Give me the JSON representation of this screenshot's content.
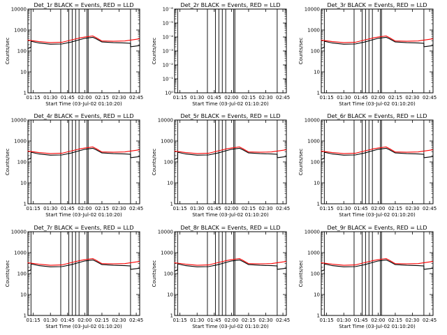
{
  "chart_data": [
    {
      "type": "line",
      "title": "Det_1r BLACK = Events, RED = LLD",
      "xlabel": "Start Time (03-Jul-02 01:10:20)",
      "ylabel": "Counts/sec",
      "xlim": [
        "01:10:20",
        "02:48:00"
      ],
      "ylim": [
        1,
        10000
      ],
      "yscale": "log",
      "xticks": [
        "01:15",
        "01:30",
        "01:45",
        "02:00",
        "02:15",
        "02:30",
        "02:45"
      ],
      "yticks": [
        "1",
        "10",
        "100",
        "1000",
        "10000"
      ],
      "verticals": [
        "01:13",
        "01:39",
        "01:46",
        "01:49",
        "01:52",
        "01:55",
        "02:02",
        "02:03",
        "02:40"
      ],
      "series": [
        {
          "name": "Events",
          "color": "#000000",
          "x": [
            "01:10",
            "01:13",
            "01:13",
            "01:20",
            "01:30",
            "01:40",
            "01:48",
            "01:55",
            "02:00",
            "02:07",
            "02:10",
            "02:15",
            "02:25",
            "02:35",
            "02:40",
            "02:40",
            "02:48"
          ],
          "y": [
            130,
            150,
            290,
            240,
            210,
            215,
            265,
            340,
            400,
            450,
            380,
            270,
            250,
            240,
            230,
            160,
            180
          ]
        },
        {
          "name": "LLD",
          "color": "#ff0000",
          "x": [
            "01:10",
            "01:20",
            "01:30",
            "01:40",
            "01:48",
            "01:55",
            "02:00",
            "02:07",
            "02:10",
            "02:15",
            "02:25",
            "02:35",
            "02:48"
          ],
          "y": [
            330,
            280,
            250,
            260,
            330,
            410,
            460,
            520,
            430,
            300,
            290,
            300,
            380
          ]
        }
      ]
    },
    {
      "type": "line",
      "title": "Det_2r BLACK = Events, RED = LLD",
      "xlabel": "Start Time (03-Jul-02 01:10:20)",
      "ylabel": "Counts/sec",
      "xlim": [
        "01:10:20",
        "02:48:00"
      ],
      "ylim": [
        1,
        1e-06
      ],
      "yscale": "log",
      "xticks": [
        "01:15",
        "01:30",
        "01:45",
        "02:00",
        "02:15",
        "02:30",
        "02:45"
      ],
      "yticks": [
        "10⁰",
        "10⁻¹",
        "10⁻²",
        "10⁻³",
        "10⁻⁴",
        "10⁻⁵",
        "10⁻⁶"
      ],
      "verticals": [
        "01:13",
        "01:39",
        "01:46",
        "01:49",
        "01:52",
        "01:55",
        "02:02",
        "02:03",
        "02:40"
      ],
      "series": [
        {
          "name": "Events",
          "color": "#000000",
          "x": [],
          "y": []
        },
        {
          "name": "LLD",
          "color": "#ff0000",
          "x": [],
          "y": []
        }
      ]
    },
    {
      "type": "line",
      "title": "Det_3r BLACK = Events, RED = LLD",
      "xlabel": "Start Time (03-Jul-02 01:10:20)",
      "ylabel": "Counts/sec",
      "xlim": [
        "01:10:20",
        "02:48:00"
      ],
      "ylim": [
        1,
        10000
      ],
      "yscale": "log",
      "xticks": [
        "01:15",
        "01:30",
        "01:45",
        "02:00",
        "02:15",
        "02:30",
        "02:45"
      ],
      "yticks": [
        "1",
        "10",
        "100",
        "1000",
        "10000"
      ],
      "verticals": [
        "01:13",
        "01:39",
        "01:46",
        "01:49",
        "01:52",
        "01:55",
        "02:02",
        "02:03",
        "02:40"
      ],
      "series": [
        {
          "name": "Events",
          "color": "#000000",
          "x": [
            "01:10",
            "01:13",
            "01:13",
            "01:20",
            "01:30",
            "01:40",
            "01:48",
            "01:55",
            "02:00",
            "02:07",
            "02:10",
            "02:15",
            "02:25",
            "02:35",
            "02:40",
            "02:40",
            "02:48"
          ],
          "y": [
            130,
            150,
            290,
            240,
            210,
            215,
            265,
            340,
            400,
            450,
            380,
            270,
            250,
            240,
            230,
            160,
            180
          ]
        },
        {
          "name": "LLD",
          "color": "#ff0000",
          "x": [
            "01:10",
            "01:20",
            "01:30",
            "01:40",
            "01:48",
            "01:55",
            "02:00",
            "02:07",
            "02:10",
            "02:15",
            "02:25",
            "02:35",
            "02:48"
          ],
          "y": [
            330,
            280,
            250,
            260,
            330,
            410,
            460,
            520,
            430,
            300,
            290,
            300,
            380
          ]
        }
      ]
    },
    {
      "type": "line",
      "title": "Det_4r BLACK = Events, RED = LLD",
      "xlabel": "Start Time (03-Jul-02 01:10:20)",
      "ylabel": "Counts/sec",
      "xlim": [
        "01:10:20",
        "02:48:00"
      ],
      "ylim": [
        1,
        10000
      ],
      "yscale": "log",
      "xticks": [
        "01:15",
        "01:30",
        "01:45",
        "02:00",
        "02:15",
        "02:30",
        "02:45"
      ],
      "yticks": [
        "1",
        "10",
        "100",
        "1000",
        "10000"
      ],
      "verticals": [
        "01:13",
        "01:39",
        "01:46",
        "01:49",
        "01:52",
        "01:55",
        "02:02",
        "02:03",
        "02:40"
      ],
      "series": [
        {
          "name": "Events",
          "color": "#000000",
          "x": [
            "01:10",
            "01:13",
            "01:13",
            "01:20",
            "01:30",
            "01:40",
            "01:48",
            "01:55",
            "02:00",
            "02:07",
            "02:10",
            "02:15",
            "02:25",
            "02:35",
            "02:40",
            "02:40",
            "02:48"
          ],
          "y": [
            130,
            150,
            290,
            240,
            210,
            215,
            265,
            340,
            400,
            450,
            380,
            270,
            250,
            240,
            230,
            160,
            180
          ]
        },
        {
          "name": "LLD",
          "color": "#ff0000",
          "x": [
            "01:10",
            "01:20",
            "01:30",
            "01:40",
            "01:48",
            "01:55",
            "02:00",
            "02:07",
            "02:10",
            "02:15",
            "02:25",
            "02:35",
            "02:48"
          ],
          "y": [
            330,
            280,
            250,
            260,
            330,
            410,
            460,
            520,
            430,
            300,
            290,
            300,
            380
          ]
        }
      ]
    },
    {
      "type": "line",
      "title": "Det_5r BLACK = Events, RED = LLD",
      "xlabel": "Start Time (03-Jul-02 01:10:20)",
      "ylabel": "Counts/sec",
      "xlim": [
        "01:10:20",
        "02:48:00"
      ],
      "ylim": [
        1,
        10000
      ],
      "yscale": "log",
      "xticks": [
        "01:15",
        "01:30",
        "01:45",
        "02:00",
        "02:15",
        "02:30",
        "02:45"
      ],
      "yticks": [
        "1",
        "10",
        "100",
        "1000",
        "10000"
      ],
      "verticals": [
        "01:13",
        "01:39",
        "01:46",
        "01:49",
        "01:52",
        "01:55",
        "02:02",
        "02:03",
        "02:40"
      ],
      "series": [
        {
          "name": "Events",
          "color": "#000000",
          "x": [
            "01:10",
            "01:13",
            "01:13",
            "01:20",
            "01:30",
            "01:40",
            "01:48",
            "01:55",
            "02:00",
            "02:07",
            "02:10",
            "02:15",
            "02:25",
            "02:35",
            "02:40",
            "02:40",
            "02:48"
          ],
          "y": [
            130,
            150,
            290,
            240,
            210,
            215,
            265,
            340,
            400,
            450,
            380,
            270,
            250,
            240,
            230,
            160,
            180
          ]
        },
        {
          "name": "LLD",
          "color": "#ff0000",
          "x": [
            "01:10",
            "01:20",
            "01:30",
            "01:40",
            "01:48",
            "01:55",
            "02:00",
            "02:07",
            "02:10",
            "02:15",
            "02:25",
            "02:35",
            "02:48"
          ],
          "y": [
            330,
            280,
            250,
            260,
            330,
            410,
            460,
            520,
            430,
            300,
            290,
            300,
            380
          ]
        }
      ]
    },
    {
      "type": "line",
      "title": "Det_6r BLACK = Events, RED = LLD",
      "xlabel": "Start Time (03-Jul-02 01:10:20)",
      "ylabel": "Counts/sec",
      "xlim": [
        "01:10:20",
        "02:48:00"
      ],
      "ylim": [
        1,
        10000
      ],
      "yscale": "log",
      "xticks": [
        "01:15",
        "01:30",
        "01:45",
        "02:00",
        "02:15",
        "02:30",
        "02:45"
      ],
      "yticks": [
        "1",
        "10",
        "100",
        "1000",
        "10000"
      ],
      "verticals": [
        "01:13",
        "01:39",
        "01:46",
        "01:49",
        "01:52",
        "01:55",
        "02:02",
        "02:03",
        "02:40"
      ],
      "series": [
        {
          "name": "Events",
          "color": "#000000",
          "x": [
            "01:10",
            "01:13",
            "01:13",
            "01:20",
            "01:30",
            "01:40",
            "01:48",
            "01:55",
            "02:00",
            "02:07",
            "02:10",
            "02:15",
            "02:25",
            "02:35",
            "02:40",
            "02:40",
            "02:48"
          ],
          "y": [
            130,
            150,
            290,
            240,
            210,
            215,
            265,
            340,
            400,
            450,
            380,
            270,
            250,
            240,
            230,
            160,
            180
          ]
        },
        {
          "name": "LLD",
          "color": "#ff0000",
          "x": [
            "01:10",
            "01:20",
            "01:30",
            "01:40",
            "01:48",
            "01:55",
            "02:00",
            "02:07",
            "02:10",
            "02:15",
            "02:25",
            "02:35",
            "02:48"
          ],
          "y": [
            330,
            280,
            250,
            260,
            330,
            410,
            460,
            520,
            430,
            300,
            290,
            300,
            380
          ]
        }
      ]
    },
    {
      "type": "line",
      "title": "Det_7r BLACK = Events, RED = LLD",
      "xlabel": "Start Time (03-Jul-02 01:10:20)",
      "ylabel": "Counts/sec",
      "xlim": [
        "01:10:20",
        "02:48:00"
      ],
      "ylim": [
        1,
        10000
      ],
      "yscale": "log",
      "xticks": [
        "01:15",
        "01:30",
        "01:45",
        "02:00",
        "02:15",
        "02:30",
        "02:45"
      ],
      "yticks": [
        "1",
        "10",
        "100",
        "1000",
        "10000"
      ],
      "verticals": [
        "01:13",
        "01:39",
        "01:46",
        "01:49",
        "01:52",
        "01:55",
        "02:02",
        "02:03",
        "02:40"
      ],
      "series": [
        {
          "name": "Events",
          "color": "#000000",
          "x": [
            "01:10",
            "01:13",
            "01:13",
            "01:20",
            "01:30",
            "01:40",
            "01:48",
            "01:55",
            "02:00",
            "02:07",
            "02:10",
            "02:15",
            "02:25",
            "02:35",
            "02:40",
            "02:40",
            "02:48"
          ],
          "y": [
            130,
            150,
            290,
            240,
            210,
            215,
            265,
            340,
            400,
            450,
            380,
            270,
            250,
            240,
            230,
            160,
            180
          ]
        },
        {
          "name": "LLD",
          "color": "#ff0000",
          "x": [
            "01:10",
            "01:20",
            "01:30",
            "01:40",
            "01:48",
            "01:55",
            "02:00",
            "02:07",
            "02:10",
            "02:15",
            "02:25",
            "02:35",
            "02:48"
          ],
          "y": [
            330,
            280,
            250,
            260,
            330,
            410,
            460,
            520,
            430,
            300,
            290,
            300,
            380
          ]
        }
      ]
    },
    {
      "type": "line",
      "title": "Det_8r BLACK = Events, RED = LLD",
      "xlabel": "Start Time (03-Jul-02 01:10:20)",
      "ylabel": "Counts/sec",
      "xlim": [
        "01:10:20",
        "02:48:00"
      ],
      "ylim": [
        1,
        10000
      ],
      "yscale": "log",
      "xticks": [
        "01:15",
        "01:30",
        "01:45",
        "02:00",
        "02:15",
        "02:30",
        "02:45"
      ],
      "yticks": [
        "1",
        "10",
        "100",
        "1000",
        "10000"
      ],
      "verticals": [
        "01:13",
        "01:39",
        "01:46",
        "01:49",
        "01:52",
        "01:55",
        "02:02",
        "02:03",
        "02:40"
      ],
      "series": [
        {
          "name": "Events",
          "color": "#000000",
          "x": [
            "01:10",
            "01:13",
            "01:13",
            "01:20",
            "01:30",
            "01:40",
            "01:48",
            "01:55",
            "02:00",
            "02:07",
            "02:10",
            "02:15",
            "02:25",
            "02:35",
            "02:40",
            "02:40",
            "02:48"
          ],
          "y": [
            130,
            150,
            290,
            240,
            210,
            215,
            265,
            340,
            400,
            450,
            380,
            270,
            250,
            240,
            230,
            160,
            180
          ]
        },
        {
          "name": "LLD",
          "color": "#ff0000",
          "x": [
            "01:10",
            "01:20",
            "01:30",
            "01:40",
            "01:48",
            "01:55",
            "02:00",
            "02:07",
            "02:10",
            "02:15",
            "02:25",
            "02:35",
            "02:48"
          ],
          "y": [
            330,
            280,
            250,
            260,
            330,
            410,
            460,
            520,
            430,
            300,
            290,
            300,
            380
          ]
        }
      ]
    },
    {
      "type": "line",
      "title": "Det_9r BLACK = Events, RED = LLD",
      "xlabel": "Start Time (03-Jul-02 01:10:20)",
      "ylabel": "Counts/sec",
      "xlim": [
        "01:10:20",
        "02:48:00"
      ],
      "ylim": [
        1,
        10000
      ],
      "yscale": "log",
      "xticks": [
        "01:15",
        "01:30",
        "01:45",
        "02:00",
        "02:15",
        "02:30",
        "02:45"
      ],
      "yticks": [
        "1",
        "10",
        "100",
        "1000",
        "10000"
      ],
      "verticals": [
        "01:13",
        "01:39",
        "01:46",
        "01:49",
        "01:52",
        "01:55",
        "02:02",
        "02:03",
        "02:40"
      ],
      "series": [
        {
          "name": "Events",
          "color": "#000000",
          "x": [
            "01:10",
            "01:13",
            "01:13",
            "01:20",
            "01:30",
            "01:40",
            "01:48",
            "01:55",
            "02:00",
            "02:07",
            "02:10",
            "02:15",
            "02:25",
            "02:35",
            "02:40",
            "02:40",
            "02:48"
          ],
          "y": [
            130,
            150,
            290,
            240,
            210,
            215,
            265,
            340,
            400,
            450,
            380,
            270,
            250,
            240,
            230,
            160,
            180
          ]
        },
        {
          "name": "LLD",
          "color": "#ff0000",
          "x": [
            "01:10",
            "01:20",
            "01:30",
            "01:40",
            "01:48",
            "01:55",
            "02:00",
            "02:07",
            "02:10",
            "02:15",
            "02:25",
            "02:35",
            "02:48"
          ],
          "y": [
            330,
            280,
            250,
            260,
            330,
            410,
            460,
            520,
            430,
            300,
            290,
            300,
            380
          ]
        }
      ]
    }
  ]
}
